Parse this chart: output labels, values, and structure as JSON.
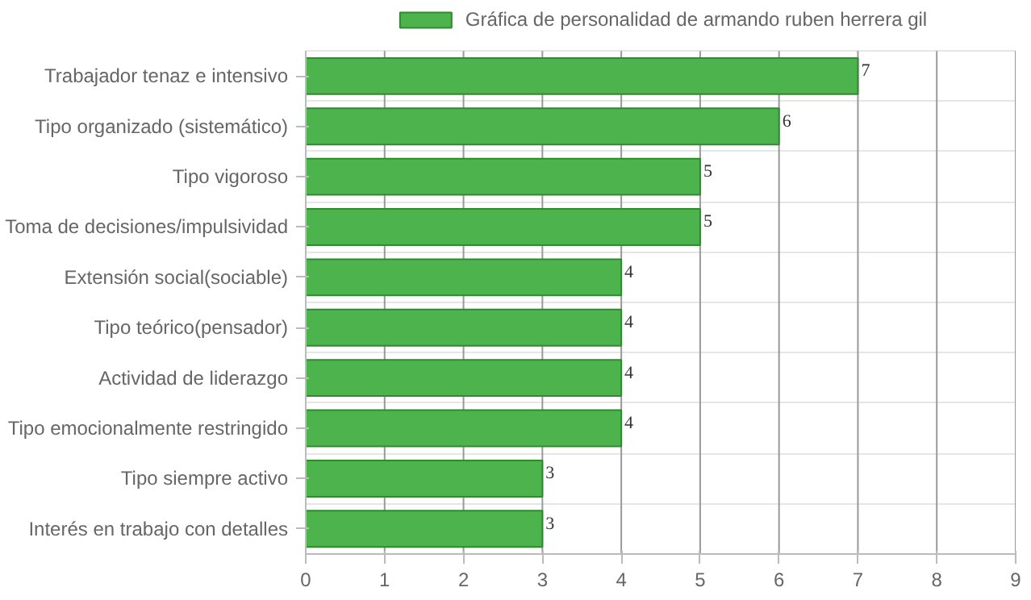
{
  "chart_data": {
    "type": "bar",
    "orientation": "horizontal",
    "categories": [
      "Trabajador tenaz e intensivo",
      "Tipo organizado (sistemático)",
      "Tipo vigoroso",
      "Toma de decisiones/impulsividad",
      "Extensión social(sociable)",
      "Tipo teórico(pensador)",
      "Actividad de liderazgo",
      "Tipo emocionalmente restringido",
      "Tipo siempre activo",
      "Interés en trabajo con detalles"
    ],
    "series": [
      {
        "name": "Gráfica de personalidad de armando ruben herrera gil",
        "color": "#4db34d",
        "values": [
          7,
          6,
          5,
          5,
          4,
          4,
          4,
          4,
          3,
          3
        ]
      }
    ],
    "xlim": [
      0,
      9
    ],
    "xticks": [
      0,
      1,
      2,
      3,
      4,
      5,
      6,
      7,
      8,
      9
    ],
    "grid": true,
    "legend": "top",
    "data_labels": true
  }
}
